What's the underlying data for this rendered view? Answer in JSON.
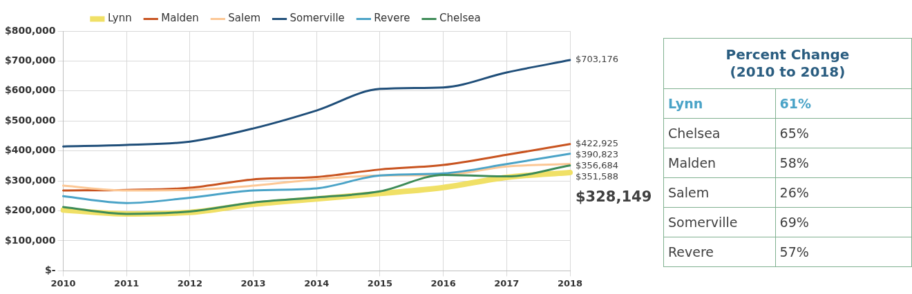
{
  "chart_data": [
    {
      "type": "line",
      "categories": [
        "2010",
        "2011",
        "2012",
        "2013",
        "2014",
        "2015",
        "2016",
        "2017",
        "2018"
      ],
      "series": [
        {
          "name": "Lynn",
          "color": "#f0e066",
          "values": [
            203000,
            190000,
            195000,
            222000,
            240000,
            258000,
            278000,
            312000,
            328149
          ],
          "value_labels": [
            null,
            null,
            null,
            null,
            null,
            null,
            null,
            null,
            "$328,149"
          ]
        },
        {
          "name": "Malden",
          "color": "#c8531f",
          "values": [
            268000,
            270000,
            277000,
            305000,
            313000,
            338000,
            353000,
            387000,
            422925
          ],
          "value_labels": [
            null,
            null,
            null,
            null,
            null,
            null,
            null,
            null,
            "$422,925"
          ]
        },
        {
          "name": "Salem",
          "color": "#fcc795",
          "values": [
            284000,
            268000,
            270000,
            284000,
            305000,
            318000,
            320000,
            348000,
            356684
          ],
          "value_labels": [
            null,
            null,
            null,
            null,
            null,
            null,
            null,
            null,
            "$356,684"
          ]
        },
        {
          "name": "Somerville",
          "color": "#1f4e79",
          "values": [
            415000,
            420000,
            431000,
            475000,
            535000,
            607000,
            612000,
            662000,
            703176
          ],
          "value_labels": [
            null,
            null,
            null,
            null,
            null,
            null,
            null,
            null,
            "$703,176"
          ]
        },
        {
          "name": "Revere",
          "color": "#4aa3c7",
          "values": [
            249000,
            226000,
            244000,
            268000,
            275000,
            318000,
            325000,
            356000,
            390823
          ],
          "value_labels": [
            null,
            null,
            null,
            null,
            null,
            null,
            null,
            null,
            "$390,823"
          ]
        },
        {
          "name": "Chelsea",
          "color": "#3d8b57",
          "values": [
            213000,
            190000,
            198000,
            228000,
            245000,
            265000,
            320000,
            315000,
            351588
          ],
          "value_labels": [
            null,
            null,
            null,
            null,
            null,
            null,
            null,
            null,
            "$351,588"
          ]
        }
      ],
      "ylim": [
        0,
        800000
      ],
      "yticks": [
        {
          "value": 0,
          "label": "$-"
        },
        {
          "value": 100000,
          "label": "$100,000"
        },
        {
          "value": 200000,
          "label": "$200,000"
        },
        {
          "value": 300000,
          "label": "$300,000"
        },
        {
          "value": 400000,
          "label": "$400,000"
        },
        {
          "value": 500000,
          "label": "$500,000"
        },
        {
          "value": 600000,
          "label": "$600,000"
        },
        {
          "value": 700000,
          "label": "$700,000"
        },
        {
          "value": 800000,
          "label": "$800,000"
        }
      ],
      "grid": true,
      "legend": "top",
      "marker": "none",
      "line_style": "solid"
    },
    {
      "type": "other",
      "title": "Percent Change (2010 to 2018)",
      "categories": [
        "Lynn",
        "Chelsea",
        "Malden",
        "Salem",
        "Somerville",
        "Revere"
      ],
      "value_labels": [
        "61%",
        "65%",
        "58%",
        "26%",
        "69%",
        "57%"
      ],
      "colors": [
        "#4aa3c7",
        "#404040",
        "#404040",
        "#404040",
        "#404040",
        "#404040"
      ]
    }
  ]
}
